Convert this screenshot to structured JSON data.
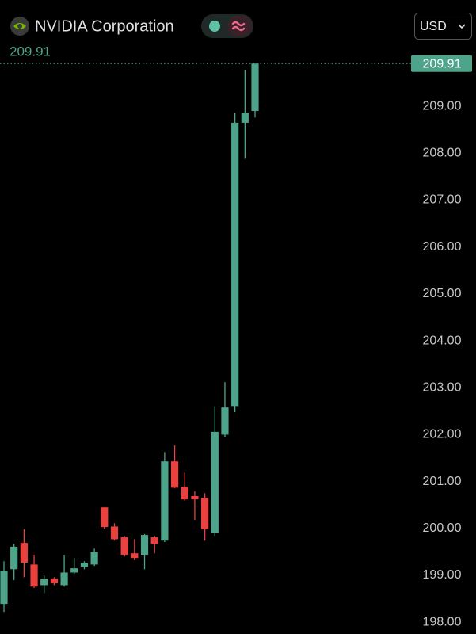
{
  "chart_data": {
    "type": "candlestick",
    "title": "NVIDIA Corporation",
    "currency": "USD",
    "last_price": 209.91,
    "up_color": "#4ea48a",
    "down_color": "#e8413e",
    "ylim": [
      197.75,
      210.05
    ],
    "yticks": [
      {
        "value": 198,
        "label": "198.00"
      },
      {
        "value": 199,
        "label": "199.00"
      },
      {
        "value": 200,
        "label": "200.00"
      },
      {
        "value": 201,
        "label": "201.00"
      },
      {
        "value": 202,
        "label": "202.00"
      },
      {
        "value": 203,
        "label": "203.00"
      },
      {
        "value": 204,
        "label": "204.00"
      },
      {
        "value": 205,
        "label": "205.00"
      },
      {
        "value": 206,
        "label": "206.00"
      },
      {
        "value": 207,
        "label": "207.00"
      },
      {
        "value": 208,
        "label": "208.00"
      },
      {
        "value": 209,
        "label": "209.00"
      }
    ],
    "open": [
      198.39,
      199.13,
      199.69,
      199.23,
      198.79,
      198.93,
      198.79,
      199.06,
      199.18,
      199.23,
      200.45,
      200.04,
      199.81,
      199.47,
      199.44,
      199.81,
      199.74,
      201.43,
      200.89,
      200.69,
      200.65,
      199.91,
      202.0,
      202.61,
      208.65,
      208.9
    ],
    "high": [
      199.3,
      199.67,
      199.98,
      199.44,
      199.0,
      198.96,
      199.44,
      199.37,
      199.3,
      199.57,
      200.45,
      200.11,
      199.84,
      199.77,
      199.88,
      199.84,
      201.63,
      201.77,
      201.19,
      200.79,
      200.75,
      202.61,
      203.12,
      208.86,
      209.78,
      209.91
    ],
    "low": [
      198.22,
      198.9,
      198.96,
      198.73,
      198.62,
      198.79,
      198.76,
      199.03,
      199.13,
      199.2,
      199.98,
      199.74,
      199.4,
      199.33,
      199.13,
      199.47,
      199.71,
      200.86,
      200.59,
      200.18,
      199.74,
      199.84,
      201.94,
      202.48,
      207.88,
      208.76
    ],
    "close": [
      199.1,
      199.61,
      199.27,
      198.76,
      198.93,
      198.83,
      199.06,
      199.15,
      199.27,
      199.5,
      200.03,
      199.77,
      199.44,
      199.37,
      199.86,
      199.67,
      201.43,
      200.87,
      200.62,
      200.62,
      199.98,
      202.06,
      202.58,
      208.65,
      208.86,
      209.91
    ]
  }
}
